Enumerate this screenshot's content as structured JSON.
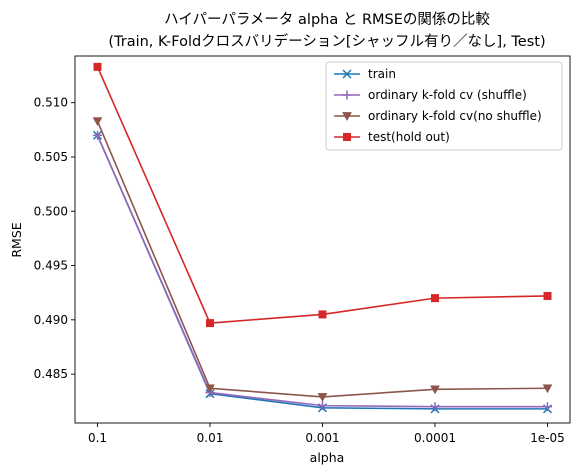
{
  "chart_data": {
    "type": "line",
    "title": "ハイパーパラメータ alpha と RMSEの関係の比較",
    "subtitle": "(Train, K-Foldクロスバリデーション[シャッフル有り／なし], Test)",
    "xlabel": "alpha",
    "ylabel": "RMSE",
    "categories": [
      "0.1",
      "0.01",
      "0.001",
      "0.0001",
      "1e-05"
    ],
    "ylim": [
      0.4805,
      0.5143
    ],
    "yticks": [
      "0.485",
      "0.490",
      "0.495",
      "0.500",
      "0.505",
      "0.510"
    ],
    "grid": false,
    "legend_position": "top-right",
    "series": [
      {
        "name": "train",
        "color": "#1f77b4",
        "marker": "x",
        "values": [
          0.507,
          0.4832,
          0.4819,
          0.4818,
          0.4818
        ]
      },
      {
        "name": "ordinary k-fold cv (shuffle)",
        "color": "#9467bd",
        "marker": "plus",
        "values": [
          0.507,
          0.4833,
          0.4821,
          0.482,
          0.482
        ]
      },
      {
        "name": "ordinary k-fold cv(no shuffle)",
        "color": "#8c564b",
        "marker": "triangle-down",
        "values": [
          0.5083,
          0.4837,
          0.4829,
          0.4836,
          0.4837
        ]
      },
      {
        "name": "test(hold out)",
        "color": "#d62728",
        "marker": "square",
        "values": [
          0.5133,
          0.4897,
          0.4905,
          0.492,
          0.4922
        ]
      }
    ]
  }
}
